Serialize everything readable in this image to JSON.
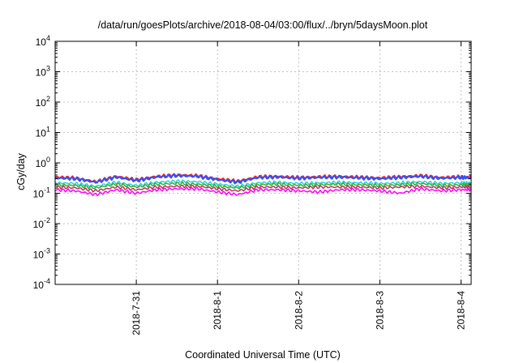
{
  "chart_data": {
    "type": "line",
    "title": "/data/run/goesPlots/archive/2018-08-04/03:00/flux/../bryn/5daysMoon.plot",
    "xlabel": "Coordinated Universal Time (UTC)",
    "ylabel": "cGy/day",
    "yscale": "log",
    "ylim": [
      0.0001,
      10000
    ],
    "xlim": [
      "2018-07-30T00:00",
      "2018-08-04T03:00"
    ],
    "grid": true,
    "y_ticks": [
      {
        "base": "10",
        "exp": "4"
      },
      {
        "base": "10",
        "exp": "3"
      },
      {
        "base": "10",
        "exp": "2"
      },
      {
        "base": "10",
        "exp": "1"
      },
      {
        "base": "10",
        "exp": "0"
      },
      {
        "base": "10",
        "exp": "-1"
      },
      {
        "base": "10",
        "exp": "-2"
      },
      {
        "base": "10",
        "exp": "-3"
      },
      {
        "base": "10",
        "exp": "-4"
      }
    ],
    "x_ticks": [
      {
        "label": "2018-7-31",
        "date": "2018-07-31T00:00"
      },
      {
        "label": "2018-8-1",
        "date": "2018-08-01T00:00"
      },
      {
        "label": "2018-8-2",
        "date": "2018-08-02T00:00"
      },
      {
        "label": "2018-8-3",
        "date": "2018-08-03T00:00"
      },
      {
        "label": "2018-8-4",
        "date": "2018-08-04T00:00"
      }
    ],
    "x": [
      "2018-07-30T00:00",
      "2018-07-30T06:00",
      "2018-07-30T12:00",
      "2018-07-30T18:00",
      "2018-07-31T00:00",
      "2018-07-31T06:00",
      "2018-07-31T12:00",
      "2018-07-31T18:00",
      "2018-08-01T00:00",
      "2018-08-01T06:00",
      "2018-08-01T12:00",
      "2018-08-01T18:00",
      "2018-08-02T00:00",
      "2018-08-02T06:00",
      "2018-08-02T12:00",
      "2018-08-02T18:00",
      "2018-08-03T00:00",
      "2018-08-03T06:00",
      "2018-08-03T12:00",
      "2018-08-03T18:00",
      "2018-08-04T00:00",
      "2018-08-04T03:00"
    ],
    "series": [
      {
        "color": "#ff2020",
        "width": 2.0,
        "values": [
          0.34,
          0.32,
          0.24,
          0.36,
          0.28,
          0.36,
          0.4,
          0.38,
          0.3,
          0.25,
          0.35,
          0.36,
          0.33,
          0.35,
          0.36,
          0.34,
          0.32,
          0.35,
          0.38,
          0.33,
          0.35,
          0.34
        ]
      },
      {
        "color": "#3050ff",
        "width": 2.2,
        "values": [
          0.32,
          0.3,
          0.23,
          0.34,
          0.26,
          0.34,
          0.38,
          0.36,
          0.28,
          0.23,
          0.33,
          0.34,
          0.31,
          0.33,
          0.34,
          0.32,
          0.3,
          0.33,
          0.36,
          0.31,
          0.33,
          0.32
        ]
      },
      {
        "color": "#30d0d0",
        "width": 1.5,
        "values": [
          0.22,
          0.21,
          0.17,
          0.23,
          0.18,
          0.23,
          0.25,
          0.24,
          0.2,
          0.17,
          0.22,
          0.23,
          0.21,
          0.22,
          0.23,
          0.22,
          0.21,
          0.22,
          0.24,
          0.21,
          0.22,
          0.22
        ]
      },
      {
        "color": "#30b030",
        "width": 1.5,
        "values": [
          0.19,
          0.18,
          0.15,
          0.2,
          0.16,
          0.2,
          0.21,
          0.2,
          0.17,
          0.15,
          0.19,
          0.2,
          0.18,
          0.19,
          0.2,
          0.19,
          0.18,
          0.19,
          0.21,
          0.18,
          0.19,
          0.19
        ]
      },
      {
        "color": "#c03060",
        "width": 1.5,
        "values": [
          0.16,
          0.15,
          0.12,
          0.16,
          0.13,
          0.16,
          0.17,
          0.17,
          0.14,
          0.12,
          0.16,
          0.16,
          0.15,
          0.16,
          0.16,
          0.16,
          0.15,
          0.16,
          0.17,
          0.15,
          0.16,
          0.16
        ]
      },
      {
        "color": "#ff00ff",
        "width": 1.5,
        "values": [
          0.13,
          0.12,
          0.09,
          0.13,
          0.1,
          0.13,
          0.14,
          0.14,
          0.11,
          0.09,
          0.13,
          0.13,
          0.12,
          0.11,
          0.13,
          0.13,
          0.12,
          0.1,
          0.14,
          0.12,
          0.13,
          0.13
        ]
      }
    ]
  }
}
